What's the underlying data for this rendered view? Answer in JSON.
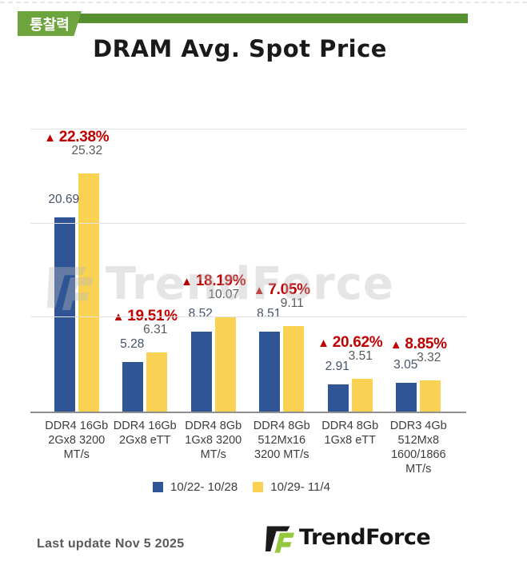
{
  "badge": {
    "label": "통찰력"
  },
  "title": "DRAM Avg. Spot Price",
  "chart_data": {
    "type": "bar",
    "title": "DRAM Avg. Spot Price",
    "xlabel": "",
    "ylabel": "",
    "ylim": [
      0,
      30
    ],
    "gridlines": [
      10,
      20,
      30
    ],
    "grid": true,
    "legend_position": "bottom",
    "categories": [
      [
        "DDR4 16Gb",
        "2Gx8 3200",
        "MT/s"
      ],
      [
        "DDR4 16Gb",
        "2Gx8 eTT"
      ],
      [
        "DDR4 8Gb",
        "1Gx8 3200",
        "MT/s"
      ],
      [
        "DDR4 8Gb",
        "512Mx16",
        "3200 MT/s"
      ],
      [
        "DDR4 8Gb",
        "1Gx8 eTT"
      ],
      [
        "DDR3 4Gb",
        "512Mx8",
        "1600/1866",
        "MT/s"
      ]
    ],
    "series": [
      {
        "name": "10/22- 10/28",
        "color": "#2f5597",
        "label_color": "#44546a",
        "values": [
          20.69,
          5.28,
          8.52,
          8.51,
          2.91,
          3.05
        ]
      },
      {
        "name": "10/29- 11/4",
        "color": "#f9d253",
        "label_color": "#595959",
        "values": [
          25.32,
          6.31,
          10.07,
          9.11,
          3.51,
          3.32
        ]
      }
    ],
    "changes": {
      "marker": "▲",
      "color": "#c00000",
      "values": [
        "22.38%",
        "19.51%",
        "18.19%",
        "7.05%",
        "20.62%",
        "8.85%"
      ]
    }
  },
  "watermark": {
    "text": "TrendForce"
  },
  "footer": {
    "last_update": "Last update Nov 5  2025",
    "brand": "TrendForce"
  },
  "colors": {
    "badge_green": "#6ea43d",
    "bar_green": "#55902f",
    "logo_green": "#94c93d",
    "axis": "#8f8f8f",
    "gridline": "#e2e2e2"
  }
}
